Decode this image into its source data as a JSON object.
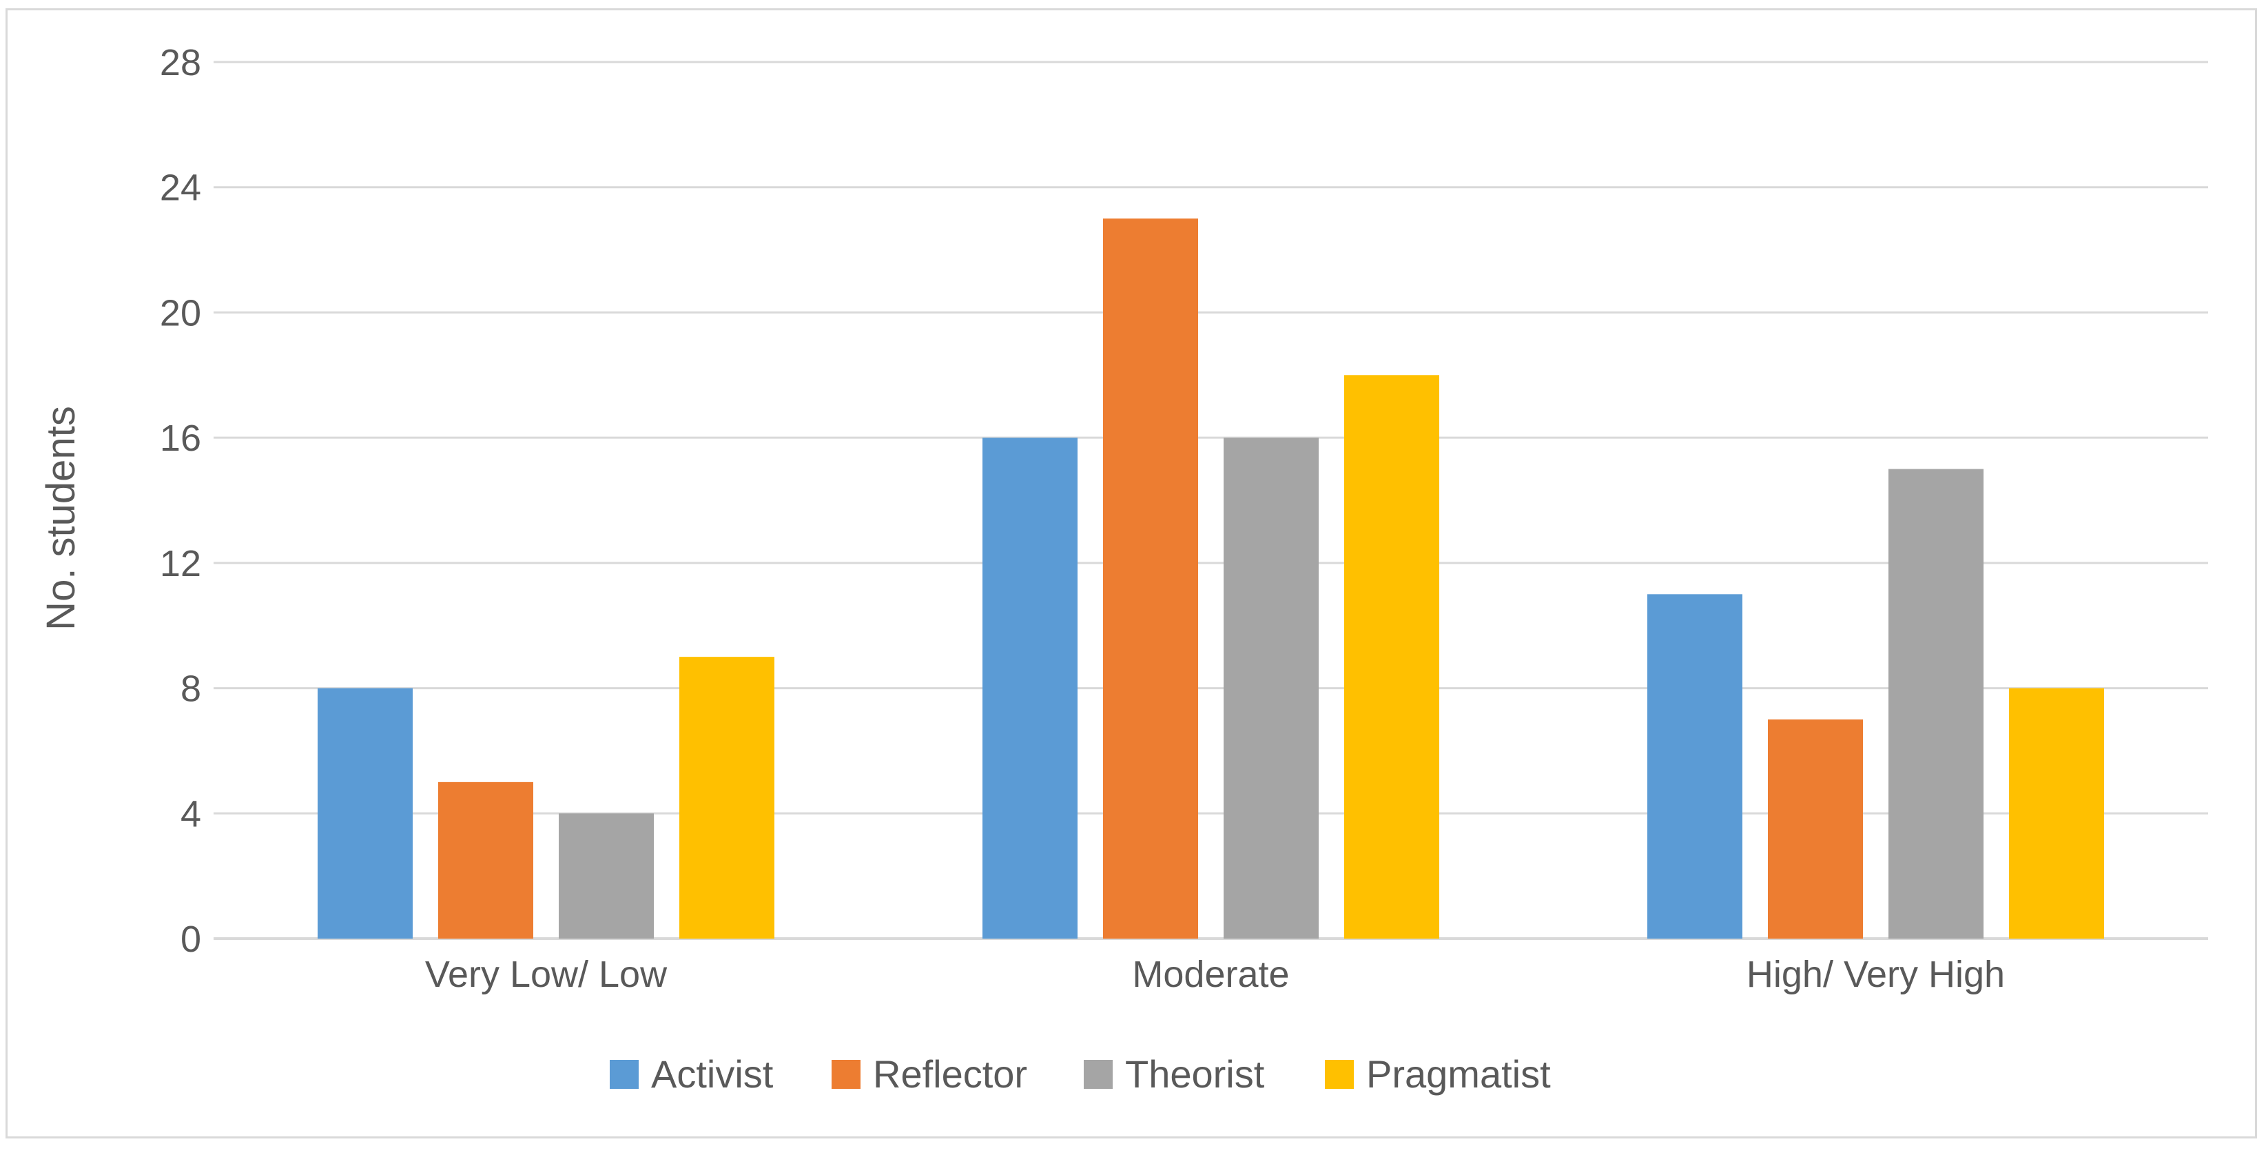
{
  "chart_data": {
    "type": "bar",
    "title": "",
    "xlabel": "",
    "ylabel": "No. students",
    "ylim": [
      0,
      28
    ],
    "yticks": [
      0,
      4,
      8,
      12,
      16,
      20,
      24,
      28
    ],
    "grid": true,
    "legend_position": "bottom",
    "categories": [
      "Very Low/ Low",
      "Moderate",
      "High/ Very High"
    ],
    "series": [
      {
        "name": "Activist",
        "color": "#5b9bd5",
        "values": [
          8,
          16,
          11
        ]
      },
      {
        "name": "Reflector",
        "color": "#ed7d31",
        "values": [
          5,
          23,
          7
        ]
      },
      {
        "name": "Theorist",
        "color": "#a5a5a5",
        "values": [
          4,
          16,
          15
        ]
      },
      {
        "name": "Pragmatist",
        "color": "#ffc000",
        "values": [
          9,
          18,
          8
        ]
      }
    ],
    "colors": {
      "grid": "#d9d9d9",
      "text": "#595959",
      "frame": "#d9d9d9"
    }
  }
}
